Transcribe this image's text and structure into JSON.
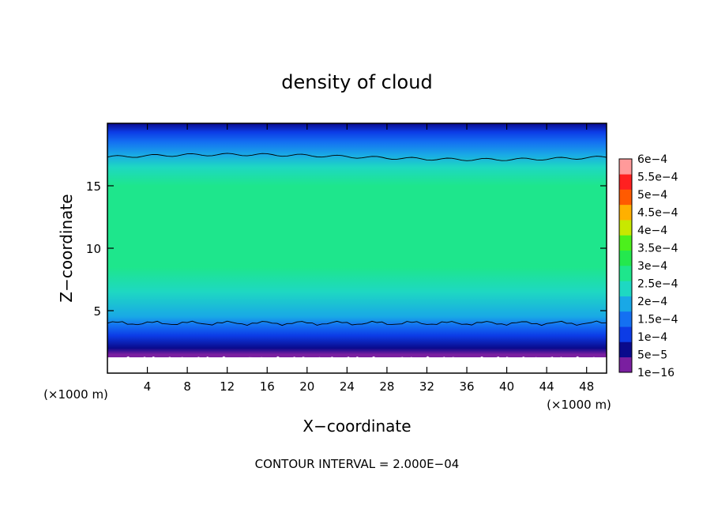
{
  "chart_data": {
    "type": "heatmap",
    "title": "density of cloud",
    "xlabel": "X−coordinate",
    "ylabel": "Z−coordinate",
    "x_unit": "(×1000 m)",
    "y_unit": "(×1000 m)",
    "xlim": [
      0,
      50
    ],
    "ylim": [
      0,
      20
    ],
    "x_ticks": [
      4,
      8,
      12,
      16,
      20,
      24,
      28,
      32,
      36,
      40,
      44,
      48
    ],
    "y_ticks": [
      5,
      10,
      15
    ],
    "footer": "CONTOUR INTERVAL = 2.000E−04",
    "colorbar": {
      "levels": [
        "1e−16",
        "5e−5",
        "1e−4",
        "1.5e−4",
        "2e−4",
        "2.5e−4",
        "3e−4",
        "3.5e−4",
        "4e−4",
        "4.5e−4",
        "5e−4",
        "5.5e−4",
        "6e−4"
      ],
      "colors": [
        "#7a1fa0",
        "#0a0a8c",
        "#0c3ce6",
        "#1470f2",
        "#19a8e6",
        "#1ed8c2",
        "#1ee68c",
        "#24e84e",
        "#4cf01c",
        "#c8e800",
        "#ffb000",
        "#ff5a00",
        "#ff2020",
        "#ff9a9a"
      ]
    },
    "z_profile": [
      {
        "z": 1.5,
        "value": 1e-16
      },
      {
        "z": 2.0,
        "value": 5e-05
      },
      {
        "z": 3.0,
        "value": 0.0001
      },
      {
        "z": 3.8,
        "value": 0.00015
      },
      {
        "z": 4.5,
        "value": 0.0002
      },
      {
        "z": 6.5,
        "value": 0.00025
      },
      {
        "z": 8.5,
        "value": 0.0003
      },
      {
        "z": 12.5,
        "value": 0.00033
      },
      {
        "z": 15.0,
        "value": 0.0003
      },
      {
        "z": 16.5,
        "value": 0.00025
      },
      {
        "z": 17.5,
        "value": 0.0002
      },
      {
        "z": 18.5,
        "value": 0.00015
      },
      {
        "z": 19.3,
        "value": 0.0001
      },
      {
        "z": 20.0,
        "value": 5e-05
      }
    ],
    "contour_lines": [
      {
        "level": 0.0002,
        "z_mean": 4.0
      },
      {
        "level": 0.0002,
        "z_mean": 17.3
      }
    ]
  }
}
